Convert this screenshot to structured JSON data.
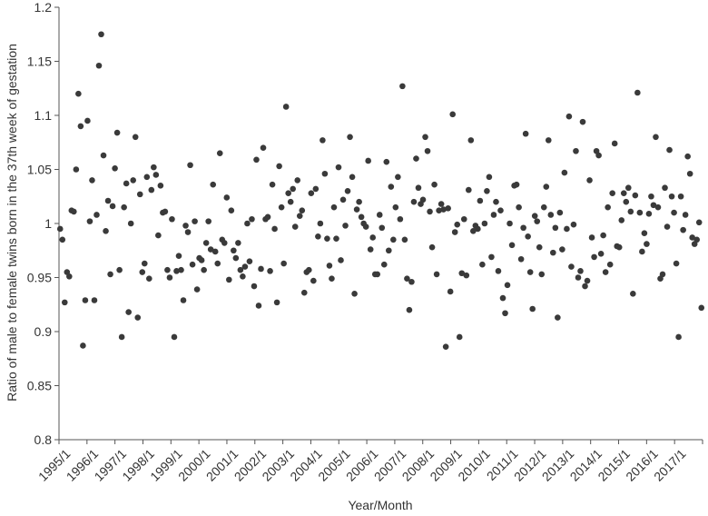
{
  "chart_data": {
    "type": "scatter",
    "ylabel": "Ratio of male to female twins born in the 37th week of gestation",
    "xlabel": "Year/Month",
    "ylim": [
      0.8,
      1.2
    ],
    "yticks": [
      0.8,
      0.85,
      0.9,
      0.95,
      1,
      1.05,
      1.1,
      1.15,
      1.2
    ],
    "ytick_labels": [
      "0.8",
      "0.85",
      "0.9",
      "0.95",
      "1",
      "1.05",
      "1.1",
      "1.15",
      "1.2"
    ],
    "xlim": [
      "1995/1",
      "2017/12"
    ],
    "xtick_labels": [
      "1995/1",
      "1996/1",
      "1997/1",
      "1998/1",
      "1999/1",
      "2000/1",
      "2001/1",
      "2002/1",
      "2003/1",
      "2004/1",
      "2005/1",
      "2006/1",
      "2007/1",
      "2008/1",
      "2009/1",
      "2010/1",
      "2011/1",
      "2012/1",
      "2013/1",
      "2014/1",
      "2015/1",
      "2016/1",
      "2017/1"
    ],
    "grid": false,
    "legend": "none",
    "point_color": "#3a3a3a",
    "values": [
      0.995,
      0.985,
      0.927,
      0.955,
      0.951,
      1.012,
      1.011,
      1.05,
      1.12,
      1.09,
      0.887,
      0.929,
      1.095,
      1.002,
      1.04,
      0.929,
      1.008,
      1.146,
      1.175,
      1.063,
      0.993,
      1.021,
      0.953,
      1.016,
      1.051,
      1.084,
      0.957,
      0.895,
      1.015,
      1.037,
      0.918,
      1.0,
      1.04,
      1.08,
      0.913,
      1.027,
      0.955,
      0.963,
      1.043,
      0.949,
      1.031,
      1.052,
      1.045,
      0.989,
      1.035,
      1.01,
      1.011,
      0.957,
      0.95,
      1.004,
      0.895,
      0.956,
      0.97,
      0.957,
      0.929,
      0.998,
      0.992,
      1.054,
      0.962,
      1.002,
      0.939,
      0.968,
      0.966,
      0.957,
      0.982,
      1.002,
      0.976,
      1.036,
      0.974,
      0.963,
      1.065,
      0.985,
      0.982,
      1.024,
      0.948,
      1.012,
      0.975,
      0.968,
      0.982,
      0.957,
      0.951,
      0.96,
      1.0,
      0.965,
      1.004,
      0.942,
      1.059,
      0.924,
      0.958,
      1.07,
      1.004,
      1.006,
      0.956,
      1.036,
      0.995,
      0.927,
      1.053,
      1.015,
      0.963,
      1.108,
      1.028,
      1.02,
      1.032,
      0.997,
      1.04,
      1.007,
      1.012,
      0.936,
      0.955,
      0.957,
      1.028,
      0.947,
      1.032,
      0.988,
      1.0,
      1.077,
      1.046,
      0.986,
      0.961,
      0.949,
      1.015,
      0.986,
      1.052,
      0.966,
      1.022,
      0.998,
      1.03,
      1.08,
      1.043,
      0.935,
      1.013,
      1.02,
      1.006,
      1.0,
      0.997,
      1.058,
      0.976,
      0.987,
      0.953,
      0.953,
      1.008,
      0.996,
      0.962,
      1.057,
      0.975,
      1.034,
      0.985,
      1.015,
      1.043,
      1.004,
      1.127,
      0.985,
      0.949,
      0.92,
      0.946,
      1.02,
      1.06,
      1.033,
      1.018,
      1.022,
      1.08,
      1.067,
      1.011,
      0.978,
      1.036,
      0.953,
      1.012,
      1.018,
      1.013,
      0.886,
      1.014,
      0.937,
      1.101,
      0.992,
      0.999,
      0.895,
      0.954,
      1.004,
      0.952,
      1.031,
      1.077,
      0.993,
      0.998,
      0.995,
      1.021,
      0.962,
      1.0,
      1.03,
      1.043,
      0.969,
      1.008,
      1.02,
      0.956,
      1.012,
      0.931,
      0.917,
      0.943,
      1.0,
      0.98,
      1.035,
      1.036,
      1.015,
      0.967,
      0.996,
      1.083,
      0.988,
      0.955,
      0.921,
      1.007,
      1.002,
      0.978,
      0.953,
      1.015,
      1.034,
      1.077,
      1.008,
      0.973,
      0.996,
      0.913,
      1.01,
      0.976,
      1.047,
      0.995,
      1.099,
      0.96,
      0.999,
      1.067,
      0.95,
      0.956,
      1.094,
      0.942,
      0.947,
      1.04,
      0.987,
      0.969,
      1.067,
      1.063,
      0.972,
      0.989,
      0.955,
      1.015,
      0.962,
      1.028,
      1.074,
      0.979,
      0.978,
      1.003,
      1.028,
      1.02,
      1.033,
      1.011,
      0.935,
      1.026,
      1.121,
      1.01,
      0.974,
      0.991,
      0.981,
      1.009,
      1.025,
      1.017,
      1.08,
      1.015,
      0.949,
      0.953,
      1.033,
      0.997,
      1.068,
      1.025,
      1.01,
      0.963,
      0.895,
      1.025,
      0.994,
      1.008,
      1.062,
      1.046,
      0.987,
      0.981,
      0.985,
      1.001,
      0.922
    ]
  }
}
